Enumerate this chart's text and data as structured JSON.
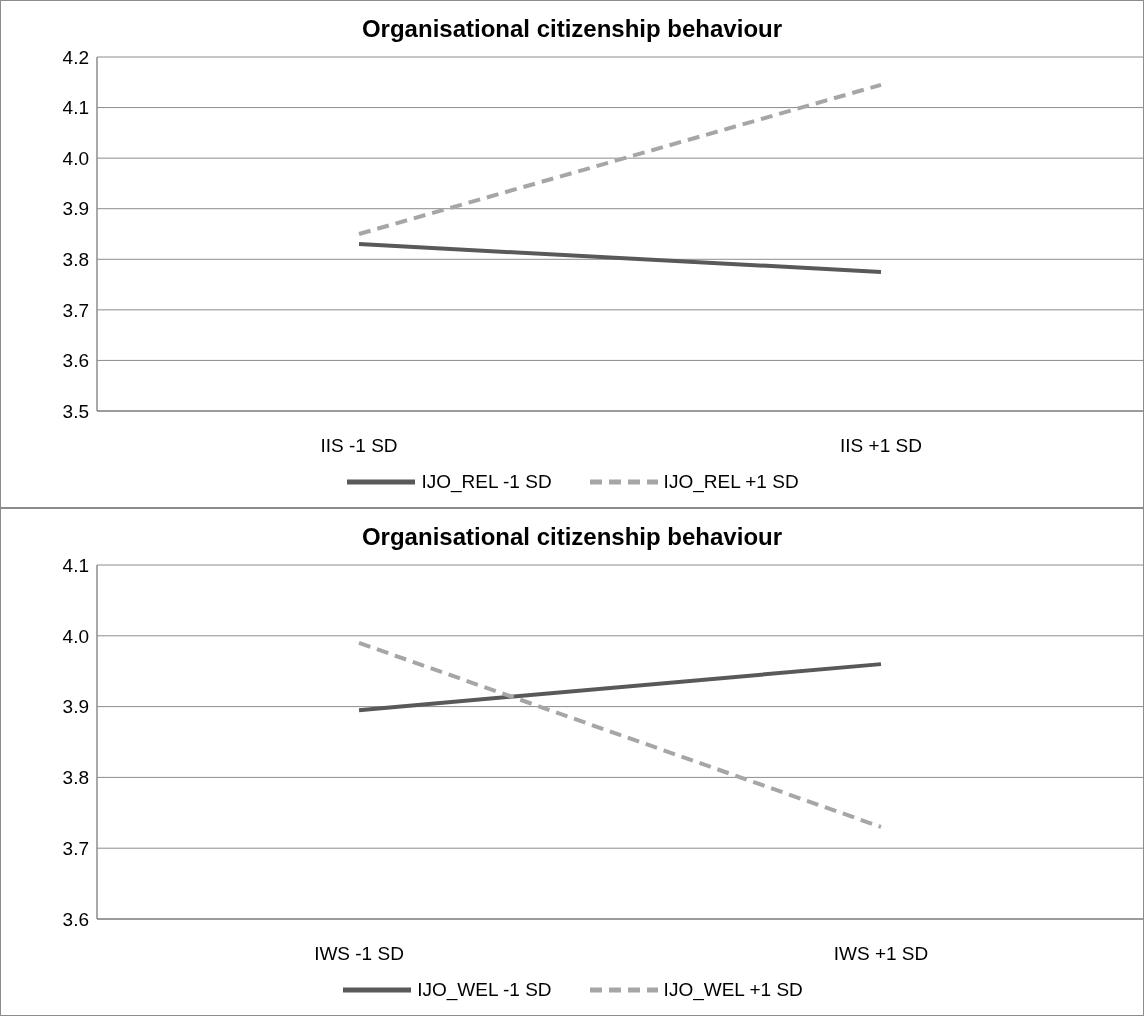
{
  "chart_data": [
    {
      "type": "line",
      "title": "Organisational citizenship behaviour",
      "categories": [
        "IIS -1 SD",
        "IIS +1 SD"
      ],
      "series": [
        {
          "name": "IJO_REL -1 SD",
          "color": "#595959",
          "values": [
            3.83,
            3.775
          ],
          "line_style": "solid"
        },
        {
          "name": "IJO_REL +1 SD",
          "color": "#a6a6a6",
          "values": [
            3.85,
            4.145
          ],
          "line_style": "dashed"
        }
      ],
      "ylim": [
        3.5,
        4.2
      ],
      "yticks": [
        {
          "value": 3.5,
          "label": "3.5"
        },
        {
          "value": 3.6,
          "label": "3.6"
        },
        {
          "value": 3.7,
          "label": "3.7"
        },
        {
          "value": 3.8,
          "label": "3.8"
        },
        {
          "value": 3.9,
          "label": "3.9"
        },
        {
          "value": 4.0,
          "label": "4.0"
        },
        {
          "value": 4.1,
          "label": "4.1"
        },
        {
          "value": 4.2,
          "label": "4.2"
        }
      ],
      "grid": "y",
      "legend": "bottom",
      "marker": "none"
    },
    {
      "type": "line",
      "title": "Organisational citizenship behaviour",
      "categories": [
        "IWS -1 SD",
        "IWS +1 SD"
      ],
      "series": [
        {
          "name": "IJO_WEL -1 SD",
          "color": "#595959",
          "values": [
            3.895,
            3.96
          ],
          "line_style": "solid"
        },
        {
          "name": "IJO_WEL +1 SD",
          "color": "#a6a6a6",
          "values": [
            3.99,
            3.73
          ],
          "line_style": "dashed"
        }
      ],
      "ylim": [
        3.6,
        4.1
      ],
      "yticks": [
        {
          "value": 3.6,
          "label": "3.6"
        },
        {
          "value": 3.7,
          "label": "3.7"
        },
        {
          "value": 3.8,
          "label": "3.8"
        },
        {
          "value": 3.9,
          "label": "3.9"
        },
        {
          "value": 4.0,
          "label": "4.0"
        },
        {
          "value": 4.1,
          "label": "4.1"
        }
      ],
      "grid": "y",
      "legend": "bottom",
      "marker": "none"
    }
  ]
}
